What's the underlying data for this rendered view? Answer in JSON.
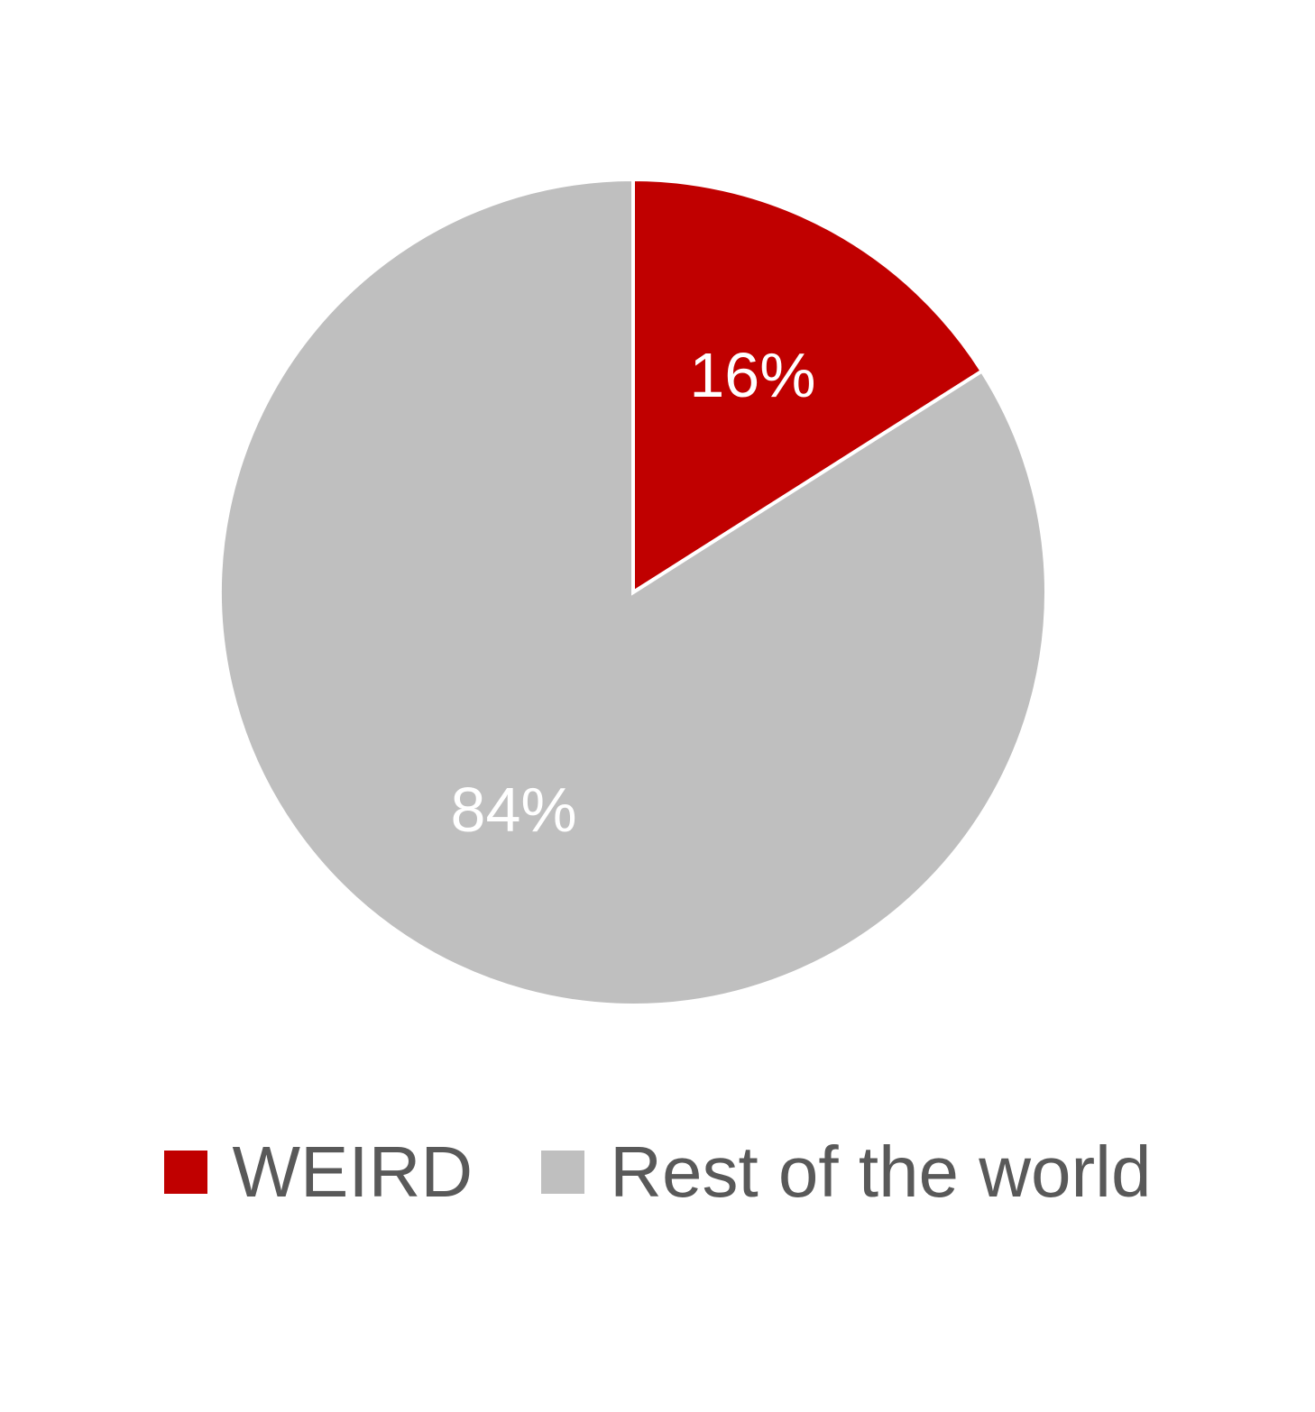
{
  "chart_data": {
    "type": "pie",
    "categories": [
      "WEIRD",
      "Rest of the world"
    ],
    "values": [
      16,
      84
    ],
    "data_labels": [
      "16%",
      "84%"
    ],
    "colors": [
      "#C00000",
      "#BFBFBF"
    ],
    "start_angle_deg": 0,
    "direction": "clockwise",
    "legend_position": "bottom"
  }
}
